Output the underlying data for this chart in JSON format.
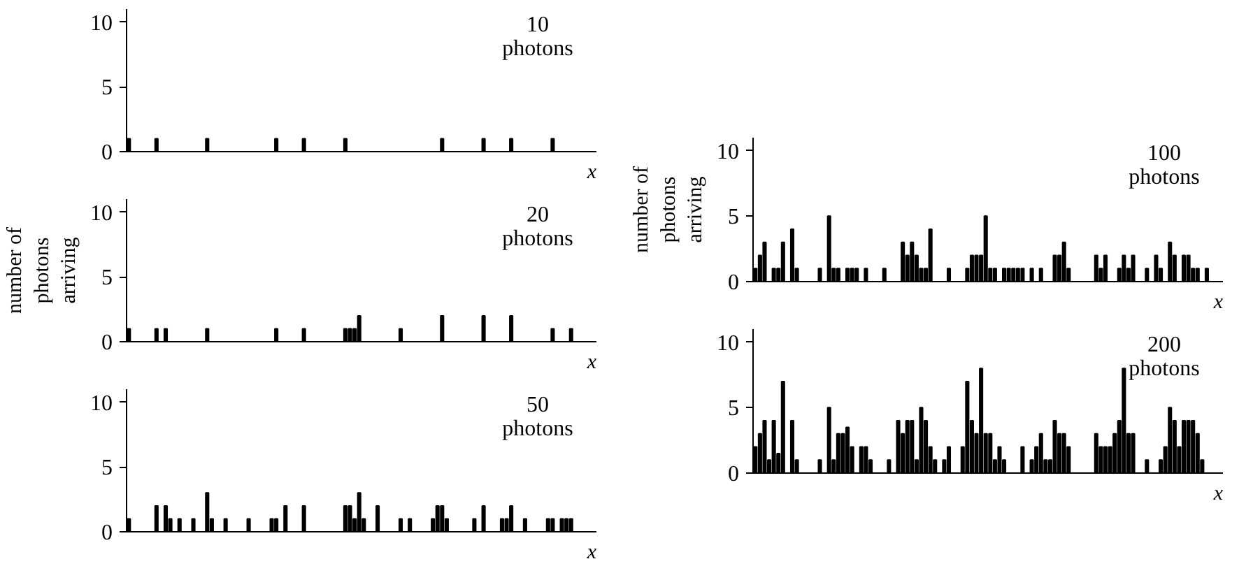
{
  "chart_data": [
    {
      "type": "bar",
      "color": "#000000",
      "tick_labels": "y",
      "xlabel": "x",
      "annotations": [
        "10\nphotons"
      ],
      "ylim": [
        0,
        11
      ],
      "yticks": [
        0,
        5,
        10
      ],
      "categories": [
        null,
        null,
        null,
        null,
        null,
        null,
        null,
        null,
        null,
        null,
        null,
        null,
        null,
        null,
        null,
        null,
        null,
        null,
        null,
        null,
        null,
        null,
        null,
        null,
        null,
        null,
        null,
        null,
        null,
        null,
        null,
        null,
        null,
        null,
        null,
        null,
        null,
        null,
        null,
        null,
        null,
        null,
        null,
        null,
        null,
        null,
        null,
        null,
        null,
        null,
        null,
        null,
        null,
        null,
        null,
        null,
        null,
        null,
        null,
        null,
        null,
        null,
        null,
        null,
        null,
        null,
        null,
        null,
        null,
        null,
        null,
        null,
        null,
        null,
        null,
        null,
        null,
        null,
        null,
        null,
        null,
        null,
        null,
        null,
        null,
        null,
        null,
        null,
        null,
        null,
        null,
        null,
        null,
        null,
        null,
        null,
        null,
        null,
        null,
        null,
        null,
        null
      ],
      "values": [
        1,
        0,
        0,
        0,
        0,
        0,
        1,
        0,
        0,
        0,
        0,
        0,
        0,
        0,
        0,
        0,
        0,
        1,
        0,
        0,
        0,
        0,
        0,
        0,
        0,
        0,
        0,
        0,
        0,
        0,
        0,
        0,
        1,
        0,
        0,
        0,
        0,
        0,
        1,
        0,
        0,
        0,
        0,
        0,
        0,
        0,
        0,
        1,
        0,
        0,
        0,
        0,
        0,
        0,
        0,
        0,
        0,
        0,
        0,
        0,
        0,
        0,
        0,
        0,
        0,
        0,
        0,
        0,
        1,
        0,
        0,
        0,
        0,
        0,
        0,
        0,
        0,
        1,
        0,
        0,
        0,
        0,
        0,
        1,
        0,
        0,
        0,
        0,
        0,
        0,
        0,
        0,
        1,
        0,
        0,
        0,
        0,
        0,
        0,
        0,
        0,
        0
      ]
    },
    {
      "type": "bar",
      "color": "#000000",
      "tick_labels": "y",
      "xlabel": "x",
      "ylabel": "number of photons arriving",
      "annotations": [
        "20\nphotons"
      ],
      "ylim": [
        0,
        11
      ],
      "yticks": [
        0,
        5,
        10
      ],
      "categories": [
        null,
        null,
        null,
        null,
        null,
        null,
        null,
        null,
        null,
        null,
        null,
        null,
        null,
        null,
        null,
        null,
        null,
        null,
        null,
        null,
        null,
        null,
        null,
        null,
        null,
        null,
        null,
        null,
        null,
        null,
        null,
        null,
        null,
        null,
        null,
        null,
        null,
        null,
        null,
        null,
        null,
        null,
        null,
        null,
        null,
        null,
        null,
        null,
        null,
        null,
        null,
        null,
        null,
        null,
        null,
        null,
        null,
        null,
        null,
        null,
        null,
        null,
        null,
        null,
        null,
        null,
        null,
        null,
        null,
        null,
        null,
        null,
        null,
        null,
        null,
        null,
        null,
        null,
        null,
        null,
        null,
        null,
        null,
        null,
        null,
        null,
        null,
        null,
        null,
        null,
        null,
        null,
        null,
        null,
        null,
        null,
        null,
        null,
        null,
        null,
        null,
        null
      ],
      "values": [
        1,
        0,
        0,
        0,
        0,
        0,
        1,
        0,
        1,
        0,
        0,
        0,
        0,
        0,
        0,
        0,
        0,
        1,
        0,
        0,
        0,
        0,
        0,
        0,
        0,
        0,
        0,
        0,
        0,
        0,
        0,
        0,
        1,
        0,
        0,
        0,
        0,
        0,
        1,
        0,
        0,
        0,
        0,
        0,
        0,
        0,
        0,
        1,
        1,
        1,
        2,
        0,
        0,
        0,
        0,
        0,
        0,
        0,
        0,
        1,
        0,
        0,
        0,
        0,
        0,
        0,
        0,
        0,
        2,
        0,
        0,
        0,
        0,
        0,
        0,
        0,
        0,
        2,
        0,
        0,
        0,
        0,
        0,
        2,
        0,
        0,
        0,
        0,
        0,
        0,
        0,
        0,
        1,
        0,
        0,
        0,
        1,
        0,
        0,
        0,
        0,
        0
      ]
    },
    {
      "type": "bar",
      "color": "#000000",
      "tick_labels": "y",
      "xlabel": "x",
      "annotations": [
        "50\nphotons"
      ],
      "ylim": [
        0,
        11
      ],
      "yticks": [
        0,
        5,
        10
      ],
      "categories": [
        null,
        null,
        null,
        null,
        null,
        null,
        null,
        null,
        null,
        null,
        null,
        null,
        null,
        null,
        null,
        null,
        null,
        null,
        null,
        null,
        null,
        null,
        null,
        null,
        null,
        null,
        null,
        null,
        null,
        null,
        null,
        null,
        null,
        null,
        null,
        null,
        null,
        null,
        null,
        null,
        null,
        null,
        null,
        null,
        null,
        null,
        null,
        null,
        null,
        null,
        null,
        null,
        null,
        null,
        null,
        null,
        null,
        null,
        null,
        null,
        null,
        null,
        null,
        null,
        null,
        null,
        null,
        null,
        null,
        null,
        null,
        null,
        null,
        null,
        null,
        null,
        null,
        null,
        null,
        null,
        null,
        null,
        null,
        null,
        null,
        null,
        null,
        null,
        null,
        null,
        null,
        null,
        null,
        null,
        null,
        null,
        null,
        null,
        null,
        null,
        null,
        null
      ],
      "values": [
        1,
        0,
        0,
        0,
        0,
        0,
        2,
        0,
        2,
        1,
        0,
        1,
        0,
        0,
        1,
        0,
        0,
        3,
        1,
        0,
        0,
        1,
        0,
        0,
        0,
        0,
        1,
        0,
        0,
        0,
        0,
        1,
        1,
        0,
        2,
        0,
        0,
        0,
        2,
        0,
        0,
        0,
        0,
        0,
        0,
        0,
        0,
        2,
        2,
        1,
        3,
        1,
        0,
        0,
        2,
        0,
        0,
        0,
        0,
        1,
        0,
        1,
        0,
        0,
        0,
        0,
        1,
        2,
        2,
        1,
        0,
        0,
        0,
        0,
        0,
        1,
        0,
        2,
        0,
        0,
        0,
        1,
        1,
        2,
        0,
        0,
        1,
        0,
        0,
        0,
        0,
        1,
        1,
        0,
        1,
        1,
        1,
        0,
        0,
        0,
        0,
        0
      ]
    },
    {
      "type": "bar",
      "color": "#000000",
      "tick_labels": "y",
      "xlabel": "x",
      "ylabel": "number of photons arriving",
      "annotations": [
        "100\nphotons"
      ],
      "ylim": [
        0,
        11
      ],
      "yticks": [
        0,
        5,
        10
      ],
      "categories": [
        null,
        null,
        null,
        null,
        null,
        null,
        null,
        null,
        null,
        null,
        null,
        null,
        null,
        null,
        null,
        null,
        null,
        null,
        null,
        null,
        null,
        null,
        null,
        null,
        null,
        null,
        null,
        null,
        null,
        null,
        null,
        null,
        null,
        null,
        null,
        null,
        null,
        null,
        null,
        null,
        null,
        null,
        null,
        null,
        null,
        null,
        null,
        null,
        null,
        null,
        null,
        null,
        null,
        null,
        null,
        null,
        null,
        null,
        null,
        null,
        null,
        null,
        null,
        null,
        null,
        null,
        null,
        null,
        null,
        null,
        null,
        null,
        null,
        null,
        null,
        null,
        null,
        null,
        null,
        null,
        null,
        null,
        null,
        null,
        null,
        null,
        null,
        null,
        null,
        null,
        null,
        null,
        null,
        null,
        null,
        null,
        null,
        null,
        null,
        null,
        null,
        null
      ],
      "values": [
        1,
        2,
        3,
        0,
        1,
        1,
        3,
        0,
        4,
        1,
        0,
        0,
        0,
        0,
        1,
        0,
        5,
        1,
        1,
        0,
        1,
        1,
        1,
        0,
        1,
        0,
        0,
        0,
        1,
        0,
        0,
        0,
        3,
        2,
        3,
        2,
        1,
        1,
        4,
        0,
        0,
        0,
        1,
        0,
        0,
        0,
        1,
        2,
        2,
        2,
        5,
        1,
        1,
        0,
        1,
        1,
        1,
        1,
        1,
        0,
        1,
        0,
        1,
        0,
        0,
        2,
        2,
        3,
        1,
        0,
        0,
        0,
        0,
        0,
        2,
        1,
        2,
        0,
        0,
        1,
        2,
        1,
        2,
        0,
        0,
        1,
        0,
        2,
        1,
        0,
        3,
        2,
        0,
        2,
        2,
        1,
        1,
        0,
        1,
        0,
        0,
        0
      ]
    },
    {
      "type": "bar",
      "color": "#000000",
      "tick_labels": "y",
      "xlabel": "x",
      "annotations": [
        "200\nphotons"
      ],
      "ylim": [
        0,
        11
      ],
      "yticks": [
        0,
        5,
        10
      ],
      "categories": [
        null,
        null,
        null,
        null,
        null,
        null,
        null,
        null,
        null,
        null,
        null,
        null,
        null,
        null,
        null,
        null,
        null,
        null,
        null,
        null,
        null,
        null,
        null,
        null,
        null,
        null,
        null,
        null,
        null,
        null,
        null,
        null,
        null,
        null,
        null,
        null,
        null,
        null,
        null,
        null,
        null,
        null,
        null,
        null,
        null,
        null,
        null,
        null,
        null,
        null,
        null,
        null,
        null,
        null,
        null,
        null,
        null,
        null,
        null,
        null,
        null,
        null,
        null,
        null,
        null,
        null,
        null,
        null,
        null,
        null,
        null,
        null,
        null,
        null,
        null,
        null,
        null,
        null,
        null,
        null,
        null,
        null,
        null,
        null,
        null,
        null,
        null,
        null,
        null,
        null,
        null,
        null,
        null,
        null,
        null,
        null,
        null,
        null,
        null,
        null,
        null,
        null
      ],
      "values": [
        2,
        3,
        4,
        1,
        4,
        1.5,
        7,
        0,
        4,
        1,
        0,
        0,
        0,
        0,
        1,
        0,
        5,
        1,
        3,
        3,
        3.5,
        2,
        0,
        2,
        2,
        1,
        0,
        0,
        0,
        1,
        0,
        4,
        3,
        4,
        4,
        1,
        5,
        4,
        2,
        1,
        0,
        1,
        2,
        0,
        0,
        2,
        7,
        4,
        3,
        8,
        3,
        3,
        1,
        2,
        1,
        0,
        0,
        0,
        2,
        0,
        1,
        2,
        3,
        1,
        1,
        4,
        3,
        3,
        2,
        0,
        0,
        0,
        0,
        0,
        3,
        2,
        2,
        2,
        3,
        4,
        8,
        3,
        3,
        0,
        0,
        1,
        0,
        0,
        1,
        2,
        5,
        4,
        2,
        4,
        4,
        4,
        3,
        1,
        0,
        0,
        0,
        0
      ]
    }
  ]
}
